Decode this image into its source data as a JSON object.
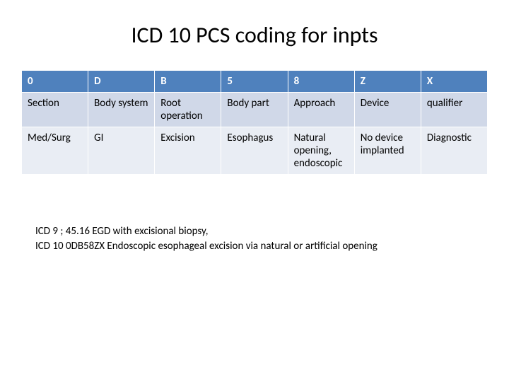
{
  "title": "ICD 10 PCS coding for inpts",
  "table": {
    "columns": [
      "0",
      "D",
      "B",
      "5",
      "8",
      "Z",
      "X"
    ],
    "rows": [
      [
        "Section",
        "Body system",
        "Root operation",
        "Body part",
        "Approach",
        "Device",
        "qualifier"
      ],
      [
        "Med/Surg",
        "GI",
        "Excision",
        "Esophagus",
        "Natural opening, endoscopic",
        "No device implanted",
        "Diagnostic"
      ]
    ],
    "header_bg": "#4f81bd",
    "header_color": "#ffffff",
    "row1_bg": "#d0d8e8",
    "row2_bg": "#e9edf4",
    "border_color": "#ffffff",
    "font_size": 15
  },
  "notes": {
    "line1": "ICD 9 ; 45.16  EGD with excisional biopsy,",
    "line2": "ICD 10 0DB58ZX  Endoscopic esophageal excision via natural or artificial opening"
  }
}
